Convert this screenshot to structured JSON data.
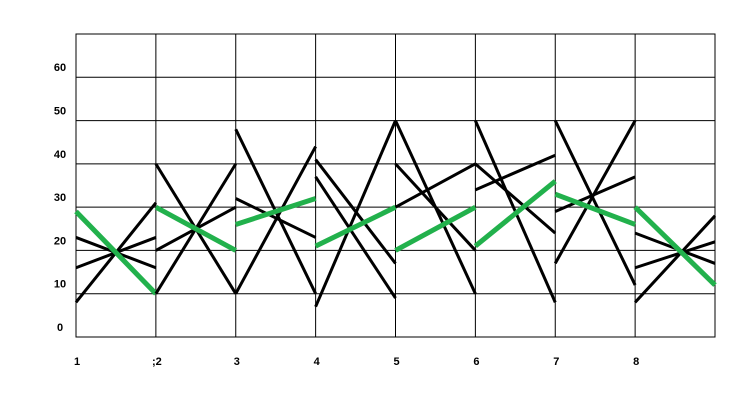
{
  "chart_data": {
    "type": "line",
    "xlim": [
      1,
      9
    ],
    "xticks": [
      1,
      {
        "value": 2,
        "label": ";2"
      },
      3,
      4,
      5,
      6,
      7,
      8
    ],
    "ylim": [
      0,
      70
    ],
    "yticks": [
      0,
      10,
      20,
      30,
      40,
      50,
      60
    ],
    "grid": true,
    "series": [
      {
        "color": "#000000",
        "x": [
          1,
          2
        ],
        "values": [
          8,
          31
        ]
      },
      {
        "color": "#000000",
        "x": [
          1,
          2
        ],
        "values": [
          23,
          16
        ]
      },
      {
        "color": "#000000",
        "x": [
          1,
          2
        ],
        "values": [
          16,
          23
        ]
      },
      {
        "color": "#22b14c",
        "x": [
          1,
          2
        ],
        "values": [
          29,
          10
        ]
      },
      {
        "color": "#000000",
        "x": [
          2,
          3
        ],
        "values": [
          40,
          10
        ]
      },
      {
        "color": "#000000",
        "x": [
          2,
          3
        ],
        "values": [
          10,
          40
        ]
      },
      {
        "color": "#000000",
        "x": [
          2,
          3
        ],
        "values": [
          20,
          30
        ]
      },
      {
        "color": "#22b14c",
        "x": [
          2,
          3
        ],
        "values": [
          30,
          20
        ]
      },
      {
        "color": "#000000",
        "x": [
          3,
          4
        ],
        "values": [
          48,
          10
        ]
      },
      {
        "color": "#000000",
        "x": [
          3,
          4
        ],
        "values": [
          10,
          44
        ]
      },
      {
        "color": "#000000",
        "x": [
          3,
          4
        ],
        "values": [
          32,
          23
        ]
      },
      {
        "color": "#22b14c",
        "x": [
          3,
          4
        ],
        "values": [
          26,
          32
        ]
      },
      {
        "color": "#000000",
        "x": [
          4,
          5
        ],
        "values": [
          41,
          17
        ]
      },
      {
        "color": "#000000",
        "x": [
          4,
          5
        ],
        "values": [
          7,
          50
        ]
      },
      {
        "color": "#000000",
        "x": [
          4,
          5
        ],
        "values": [
          37,
          9
        ]
      },
      {
        "color": "#22b14c",
        "x": [
          4,
          5
        ],
        "values": [
          21,
          30
        ]
      },
      {
        "color": "#000000",
        "x": [
          5,
          6
        ],
        "values": [
          50,
          10
        ]
      },
      {
        "color": "#000000",
        "x": [
          5,
          6
        ],
        "values": [
          40,
          20
        ]
      },
      {
        "color": "#000000",
        "x": [
          5,
          6
        ],
        "values": [
          30,
          40
        ]
      },
      {
        "color": "#22b14c",
        "x": [
          5,
          6
        ],
        "values": [
          20,
          30
        ]
      },
      {
        "color": "#000000",
        "x": [
          6,
          7
        ],
        "values": [
          50,
          8
        ]
      },
      {
        "color": "#000000",
        "x": [
          6,
          7
        ],
        "values": [
          34,
          42
        ]
      },
      {
        "color": "#000000",
        "x": [
          6,
          7
        ],
        "values": [
          40,
          24
        ]
      },
      {
        "color": "#22b14c",
        "x": [
          6,
          7
        ],
        "values": [
          21,
          36
        ]
      },
      {
        "color": "#000000",
        "x": [
          7,
          8
        ],
        "values": [
          50,
          12
        ]
      },
      {
        "color": "#000000",
        "x": [
          7,
          8
        ],
        "values": [
          17,
          50
        ]
      },
      {
        "color": "#000000",
        "x": [
          7,
          8
        ],
        "values": [
          29,
          37
        ]
      },
      {
        "color": "#22b14c",
        "x": [
          7,
          8
        ],
        "values": [
          33,
          26
        ]
      },
      {
        "color": "#000000",
        "x": [
          8,
          9
        ],
        "values": [
          8,
          28
        ]
      },
      {
        "color": "#000000",
        "x": [
          8,
          9
        ],
        "values": [
          16,
          22
        ]
      },
      {
        "color": "#000000",
        "x": [
          8,
          9
        ],
        "values": [
          24,
          17
        ]
      },
      {
        "color": "#22b14c",
        "x": [
          8,
          9
        ],
        "values": [
          30,
          12
        ]
      }
    ]
  }
}
